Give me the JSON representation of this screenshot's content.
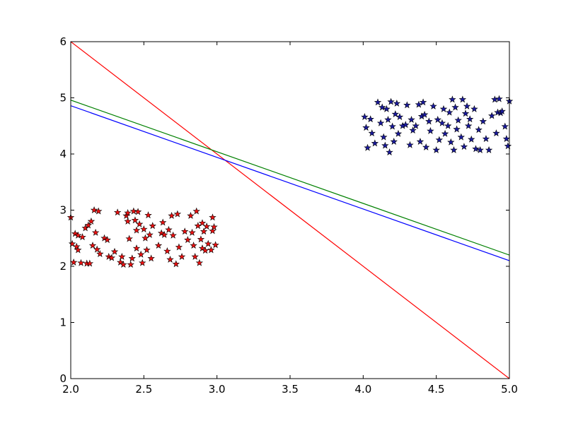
{
  "chart_data": {
    "type": "scatter",
    "title": "",
    "xlabel": "",
    "ylabel": "",
    "xlim": [
      2.0,
      5.0
    ],
    "ylim": [
      0,
      6
    ],
    "grid": false,
    "x_ticks": [
      2.0,
      2.5,
      3.0,
      3.5,
      4.0,
      4.5,
      5.0
    ],
    "x_tick_labels": [
      "2.0",
      "2.5",
      "3.0",
      "3.5",
      "4.0",
      "4.5",
      "5.0"
    ],
    "y_ticks": [
      0,
      1,
      2,
      3,
      4,
      5,
      6
    ],
    "y_tick_labels": [
      "0",
      "1",
      "2",
      "3",
      "4",
      "5",
      "6"
    ],
    "scatter_series": [
      {
        "color": "#ee1111",
        "marker": "star",
        "points": [
          [
            2.0,
            2.87
          ],
          [
            2.01,
            2.4
          ],
          [
            2.02,
            2.07
          ],
          [
            2.03,
            2.58
          ],
          [
            2.04,
            2.35
          ],
          [
            2.05,
            2.55
          ],
          [
            2.05,
            2.29
          ],
          [
            2.07,
            2.06
          ],
          [
            2.08,
            2.52
          ],
          [
            2.1,
            2.68
          ],
          [
            2.11,
            2.05
          ],
          [
            2.12,
            2.73
          ],
          [
            2.13,
            2.05
          ],
          [
            2.14,
            2.8
          ],
          [
            2.15,
            2.37
          ],
          [
            2.16,
            3.0
          ],
          [
            2.17,
            2.6
          ],
          [
            2.18,
            2.3
          ],
          [
            2.19,
            2.98
          ],
          [
            2.2,
            2.22
          ],
          [
            2.23,
            2.5
          ],
          [
            2.25,
            2.47
          ],
          [
            2.26,
            2.17
          ],
          [
            2.28,
            2.15
          ],
          [
            2.3,
            2.26
          ],
          [
            2.32,
            2.96
          ],
          [
            2.34,
            2.07
          ],
          [
            2.35,
            2.17
          ],
          [
            2.36,
            2.03
          ],
          [
            2.38,
            2.9
          ],
          [
            2.39,
            2.95
          ],
          [
            2.39,
            2.8
          ],
          [
            2.4,
            2.49
          ],
          [
            2.41,
            2.03
          ],
          [
            2.42,
            2.14
          ],
          [
            2.43,
            2.98
          ],
          [
            2.44,
            2.82
          ],
          [
            2.45,
            2.64
          ],
          [
            2.45,
            2.32
          ],
          [
            2.46,
            2.97
          ],
          [
            2.47,
            2.75
          ],
          [
            2.48,
            2.21
          ],
          [
            2.49,
            2.06
          ],
          [
            2.5,
            2.66
          ],
          [
            2.51,
            2.5
          ],
          [
            2.52,
            2.29
          ],
          [
            2.53,
            2.91
          ],
          [
            2.54,
            2.56
          ],
          [
            2.55,
            2.14
          ],
          [
            2.56,
            2.72
          ],
          [
            2.6,
            2.37
          ],
          [
            2.62,
            2.59
          ],
          [
            2.63,
            2.78
          ],
          [
            2.64,
            2.56
          ],
          [
            2.66,
            2.27
          ],
          [
            2.67,
            2.65
          ],
          [
            2.68,
            2.12
          ],
          [
            2.69,
            2.9
          ],
          [
            2.7,
            2.55
          ],
          [
            2.72,
            2.04
          ],
          [
            2.73,
            2.93
          ],
          [
            2.74,
            2.34
          ],
          [
            2.76,
            2.17
          ],
          [
            2.78,
            2.62
          ],
          [
            2.8,
            2.47
          ],
          [
            2.82,
            2.9
          ],
          [
            2.83,
            2.6
          ],
          [
            2.84,
            2.37
          ],
          [
            2.85,
            2.17
          ],
          [
            2.86,
            2.98
          ],
          [
            2.87,
            2.72
          ],
          [
            2.88,
            2.06
          ],
          [
            2.89,
            2.48
          ],
          [
            2.9,
            2.32
          ],
          [
            2.9,
            2.77
          ],
          [
            2.91,
            2.62
          ],
          [
            2.92,
            2.28
          ],
          [
            2.93,
            2.71
          ],
          [
            2.94,
            2.4
          ],
          [
            2.96,
            2.29
          ],
          [
            2.97,
            2.87
          ],
          [
            2.97,
            2.63
          ],
          [
            2.98,
            2.7
          ],
          [
            2.99,
            2.38
          ]
        ]
      },
      {
        "color": "#1a1aa0",
        "marker": "star",
        "points": [
          [
            4.01,
            4.66
          ],
          [
            4.02,
            4.47
          ],
          [
            4.03,
            4.11
          ],
          [
            4.05,
            4.62
          ],
          [
            4.06,
            4.37
          ],
          [
            4.08,
            4.19
          ],
          [
            4.1,
            4.92
          ],
          [
            4.12,
            4.55
          ],
          [
            4.13,
            4.83
          ],
          [
            4.14,
            4.3
          ],
          [
            4.15,
            4.15
          ],
          [
            4.16,
            4.8
          ],
          [
            4.17,
            4.61
          ],
          [
            4.18,
            4.03
          ],
          [
            4.19,
            4.93
          ],
          [
            4.2,
            4.49
          ],
          [
            4.21,
            4.22
          ],
          [
            4.22,
            4.71
          ],
          [
            4.23,
            4.9
          ],
          [
            4.24,
            4.36
          ],
          [
            4.25,
            4.66
          ],
          [
            4.27,
            4.5
          ],
          [
            4.29,
            4.52
          ],
          [
            4.3,
            4.87
          ],
          [
            4.32,
            4.16
          ],
          [
            4.33,
            4.61
          ],
          [
            4.34,
            4.42
          ],
          [
            4.36,
            4.5
          ],
          [
            4.38,
            4.88
          ],
          [
            4.39,
            4.22
          ],
          [
            4.4,
            4.67
          ],
          [
            4.41,
            4.92
          ],
          [
            4.42,
            4.7
          ],
          [
            4.43,
            4.12
          ],
          [
            4.45,
            4.58
          ],
          [
            4.46,
            4.41
          ],
          [
            4.48,
            4.85
          ],
          [
            4.5,
            4.07
          ],
          [
            4.51,
            4.61
          ],
          [
            4.52,
            4.25
          ],
          [
            4.54,
            4.55
          ],
          [
            4.55,
            4.8
          ],
          [
            4.56,
            4.36
          ],
          [
            4.58,
            4.5
          ],
          [
            4.59,
            4.74
          ],
          [
            4.6,
            4.21
          ],
          [
            4.61,
            4.97
          ],
          [
            4.62,
            4.07
          ],
          [
            4.63,
            4.83
          ],
          [
            4.64,
            4.44
          ],
          [
            4.65,
            4.6
          ],
          [
            4.67,
            4.3
          ],
          [
            4.68,
            4.97
          ],
          [
            4.69,
            4.13
          ],
          [
            4.7,
            4.72
          ],
          [
            4.71,
            4.85
          ],
          [
            4.72,
            4.5
          ],
          [
            4.73,
            4.62
          ],
          [
            4.74,
            4.26
          ],
          [
            4.76,
            4.8
          ],
          [
            4.77,
            4.09
          ],
          [
            4.79,
            4.43
          ],
          [
            4.8,
            4.07
          ],
          [
            4.82,
            4.58
          ],
          [
            4.84,
            4.27
          ],
          [
            4.86,
            4.07
          ],
          [
            4.88,
            4.68
          ],
          [
            4.9,
            4.97
          ],
          [
            4.91,
            4.37
          ],
          [
            4.92,
            4.74
          ],
          [
            4.93,
            4.98
          ],
          [
            4.94,
            4.73
          ],
          [
            4.95,
            4.76
          ],
          [
            4.97,
            4.49
          ],
          [
            4.98,
            4.27
          ],
          [
            4.99,
            4.14
          ],
          [
            5.0,
            4.94
          ]
        ]
      }
    ],
    "line_series": [
      {
        "color": "#ff0000",
        "x": [
          2.0,
          5.0
        ],
        "y": [
          6.0,
          0.0
        ]
      },
      {
        "color": "#008000",
        "x": [
          2.0,
          5.0
        ],
        "y": [
          4.96,
          2.2
        ]
      },
      {
        "color": "#0000ff",
        "x": [
          2.0,
          5.0
        ],
        "y": [
          4.86,
          2.1
        ]
      }
    ],
    "colors": {
      "axes": "#000000",
      "background": "#ffffff",
      "marker_edge": "#000000"
    }
  }
}
